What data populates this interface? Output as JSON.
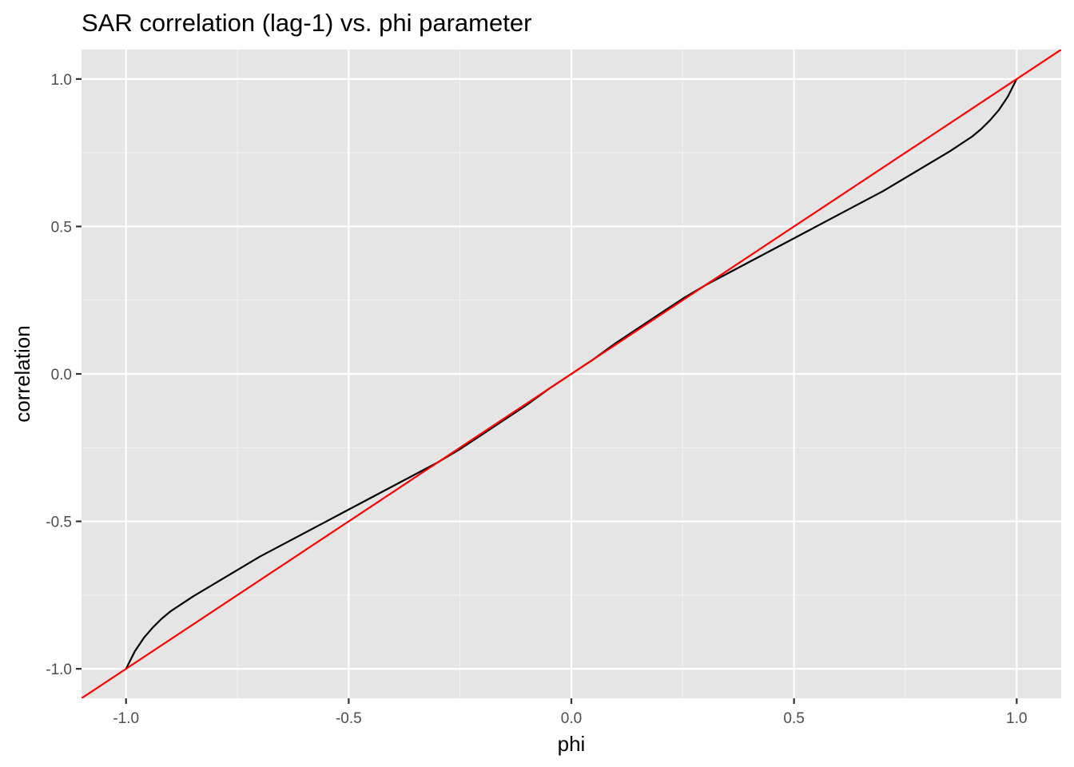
{
  "chart_data": {
    "type": "line",
    "title": "SAR correlation (lag-1) vs. phi parameter",
    "xlabel": "phi",
    "ylabel": "correlation",
    "xlim": [
      -1.1,
      1.1
    ],
    "ylim": [
      -1.1,
      1.1
    ],
    "x_ticks": [
      -1.0,
      -0.5,
      0.0,
      0.5,
      1.0
    ],
    "y_ticks": [
      -1.0,
      -0.5,
      0.0,
      0.5,
      1.0
    ],
    "x_tick_labels": [
      "-1.0",
      "-0.5",
      "0.0",
      "0.5",
      "1.0"
    ],
    "y_tick_labels": [
      "-1.0",
      "-0.5",
      "0.0",
      "0.5",
      "1.0"
    ],
    "grid": true,
    "series": [
      {
        "color": "#000000",
        "x": [
          -1.0,
          -0.99,
          -0.98,
          -0.96,
          -0.94,
          -0.92,
          -0.9,
          -0.85,
          -0.8,
          -0.75,
          -0.7,
          -0.65,
          -0.6,
          -0.55,
          -0.5,
          -0.45,
          -0.4,
          -0.35,
          -0.3,
          -0.25,
          -0.2,
          -0.15,
          -0.1,
          -0.05,
          0.0,
          0.05,
          0.1,
          0.15,
          0.2,
          0.25,
          0.3,
          0.35,
          0.4,
          0.45,
          0.5,
          0.55,
          0.6,
          0.65,
          0.7,
          0.75,
          0.8,
          0.85,
          0.9,
          0.92,
          0.94,
          0.96,
          0.98,
          0.99,
          1.0
        ],
        "y": [
          -1.0,
          -0.97,
          -0.94,
          -0.895,
          -0.86,
          -0.83,
          -0.805,
          -0.755,
          -0.71,
          -0.665,
          -0.62,
          -0.58,
          -0.54,
          -0.5,
          -0.46,
          -0.42,
          -0.38,
          -0.34,
          -0.3,
          -0.255,
          -0.205,
          -0.155,
          -0.105,
          -0.05,
          0.0,
          0.05,
          0.105,
          0.155,
          0.205,
          0.255,
          0.3,
          0.34,
          0.38,
          0.42,
          0.46,
          0.5,
          0.54,
          0.58,
          0.62,
          0.665,
          0.71,
          0.755,
          0.805,
          0.83,
          0.86,
          0.895,
          0.94,
          0.97,
          1.0
        ]
      },
      {
        "color": "#ff0000",
        "x": [
          -1.1,
          1.1
        ],
        "y": [
          -1.1,
          1.1
        ]
      }
    ]
  }
}
